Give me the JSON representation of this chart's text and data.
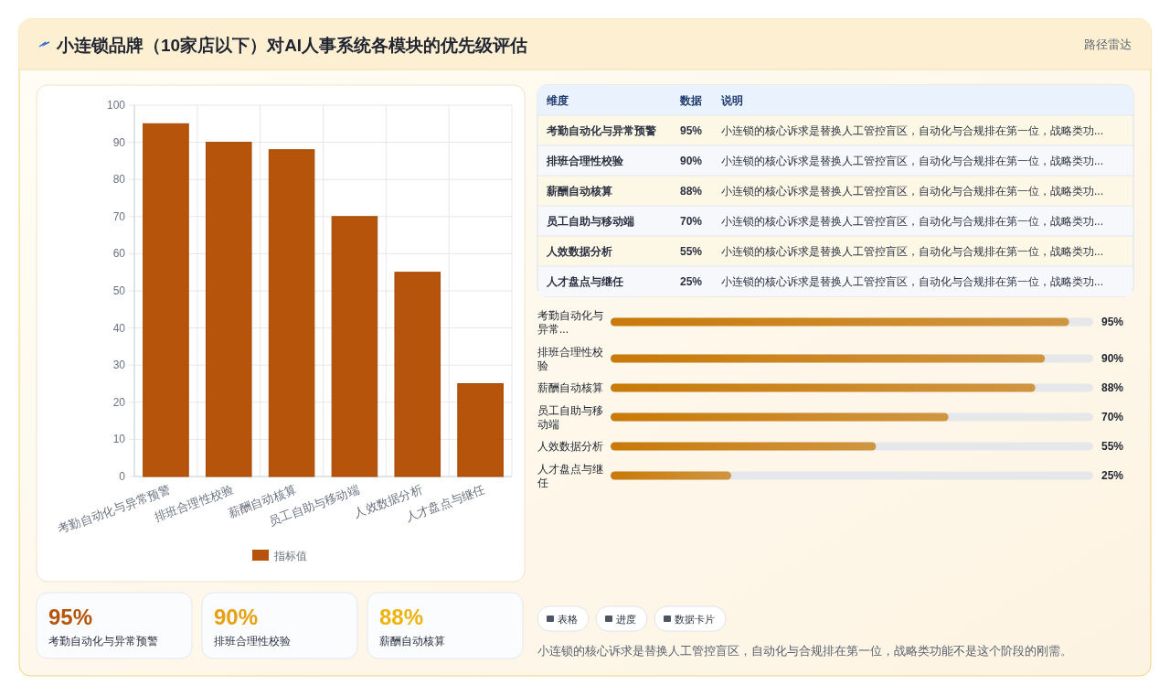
{
  "chart_data": [
    {
      "type": "bar",
      "title": "小连锁品牌（10家店以下）对AI人事系统各模块的优先级评估",
      "categories": [
        "考勤自动化与异常预警",
        "排班合理性校验",
        "薪酬自动核算",
        "员工自助与移动端",
        "人效数据分析",
        "人才盘点与继任"
      ],
      "series": [
        {
          "name": "指标值",
          "color": "#b5540a",
          "values": [
            95,
            90,
            88,
            70,
            55,
            25
          ]
        }
      ],
      "ylim": [
        0,
        100
      ],
      "yticks": [
        0,
        10,
        20,
        30,
        40,
        50,
        60,
        70,
        80,
        90,
        100
      ],
      "grid": true,
      "legend": "bottom"
    },
    {
      "type": "bar",
      "orientation": "horizontal",
      "categories": [
        "考勤自动化与异常...",
        "排班合理性校验",
        "薪酬自动核算",
        "员工自助与移动端",
        "人效数据分析",
        "人才盘点与继任"
      ],
      "values": [
        95,
        90,
        88,
        70,
        55,
        25
      ],
      "value_labels": [
        "95%",
        "90%",
        "88%",
        "70%",
        "55%",
        "25%"
      ],
      "color": "#c97a08",
      "xlim": [
        0,
        100
      ],
      "tick_labels": "y"
    },
    {
      "type": "other",
      "categories": [
        "维度",
        "数据",
        "说明"
      ],
      "annotations": [
        "考勤自动化与异常预警",
        "95%",
        "小连锁的核心诉求是替换人工管控盲区，自动化与合规排在第一位，战略类功...",
        "排班合理性校验",
        "90%",
        "小连锁的核心诉求是替换人工管控盲区，自动化与合规排在第一位，战略类功...",
        "薪酬自动核算",
        "88%",
        "小连锁的核心诉求是替换人工管控盲区，自动化与合规排在第一位，战略类功...",
        "员工自助与移动端",
        "70%",
        "小连锁的核心诉求是替换人工管控盲区，自动化与合规排在第一位，战略类功...",
        "人效数据分析",
        "55%",
        "小连锁的核心诉求是替换人工管控盲区，自动化与合规排在第一位，战略类功...",
        "人才盘点与继任",
        "25%",
        "小连锁的核心诉求是替换人工管控盲区，自动化与合规排在第一位，战略类功..."
      ]
    },
    {
      "type": "other",
      "annotations": [
        "95%",
        "考勤自动化与异常预警",
        "90%",
        "排班合理性校验",
        "88%",
        "薪酬自动核算"
      ],
      "colors": [
        "#b5540a",
        "#e6a012",
        "#eeb30e"
      ]
    },
    {
      "type": "other",
      "subtitle": "路径雷达",
      "annotations": [
        "表格",
        "进度",
        "数据卡片",
        "小连锁的核心诉求是替换人工管控盲区，自动化与合规排在第一位，战略类功能不是这个阶段的刚需。"
      ]
    }
  ]
}
